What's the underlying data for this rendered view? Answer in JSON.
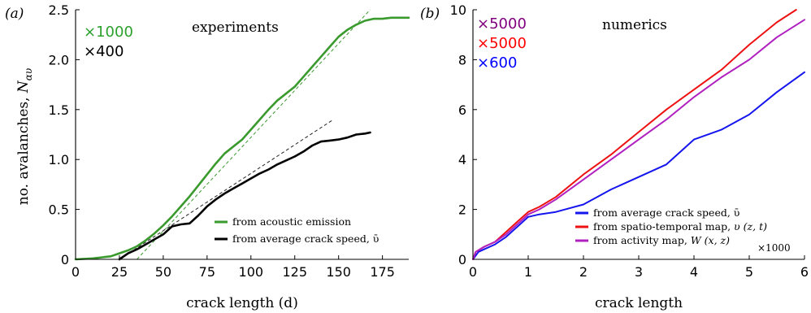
{
  "chart_data": [
    {
      "type": "line",
      "panel_label": "(a)",
      "title": "experiments",
      "xlabel": "crack length (d)",
      "ylabel_text": "no. avalanches, ",
      "ylabel_symbol": "N",
      "ylabel_subscript": "αυ",
      "xlim": [
        0,
        190
      ],
      "ylim": [
        0,
        2.5
      ],
      "xticks": [
        0,
        25,
        50,
        75,
        100,
        125,
        150,
        175
      ],
      "yticks": [
        0,
        0.5,
        1.0,
        1.5,
        2.0,
        2.5
      ],
      "ytick_labels": [
        "0",
        "0.5",
        "1.0",
        "1.5",
        "2.0",
        "2.5"
      ],
      "multipliers": [
        {
          "text": "×1000",
          "color": "#2ca02c"
        },
        {
          "text": "×400",
          "color": "#000000"
        }
      ],
      "series": [
        {
          "name": "from acoustic emission",
          "color": "#3a9a2e",
          "x": [
            0,
            10,
            20,
            25,
            30,
            35,
            40,
            45,
            50,
            55,
            60,
            65,
            70,
            75,
            80,
            85,
            90,
            95,
            100,
            105,
            110,
            115,
            120,
            125,
            130,
            135,
            140,
            145,
            150,
            155,
            160,
            165,
            170,
            175,
            180,
            185,
            190
          ],
          "y": [
            0,
            0.01,
            0.03,
            0.06,
            0.09,
            0.13,
            0.19,
            0.26,
            0.34,
            0.43,
            0.53,
            0.63,
            0.74,
            0.85,
            0.96,
            1.06,
            1.13,
            1.2,
            1.3,
            1.4,
            1.5,
            1.59,
            1.66,
            1.73,
            1.83,
            1.93,
            2.03,
            2.13,
            2.23,
            2.3,
            2.35,
            2.39,
            2.41,
            2.41,
            2.42,
            2.42,
            2.42
          ]
        },
        {
          "name": "from average crack speed, ῡ",
          "color": "#000000",
          "x": [
            25,
            30,
            35,
            40,
            45,
            50,
            55,
            60,
            65,
            70,
            75,
            80,
            85,
            90,
            95,
            100,
            105,
            110,
            115,
            120,
            125,
            130,
            135,
            140,
            145,
            150,
            155,
            160,
            165,
            168
          ],
          "y": [
            0,
            0.06,
            0.1,
            0.15,
            0.2,
            0.25,
            0.33,
            0.35,
            0.36,
            0.44,
            0.53,
            0.6,
            0.66,
            0.71,
            0.76,
            0.81,
            0.86,
            0.9,
            0.95,
            0.99,
            1.03,
            1.08,
            1.14,
            1.18,
            1.19,
            1.2,
            1.22,
            1.25,
            1.26,
            1.27
          ]
        }
      ],
      "fit_lines": [
        {
          "x": [
            35,
            168
          ],
          "y": [
            0,
            2.5
          ]
        },
        {
          "x": [
            25,
            147
          ],
          "y": [
            0,
            1.4
          ]
        }
      ]
    },
    {
      "type": "line",
      "panel_label": "(b)",
      "title": "numerics",
      "xlabel": "crack length",
      "xlim": [
        0,
        6
      ],
      "ylim": [
        0,
        10
      ],
      "xticks": [
        0,
        1,
        2,
        3,
        4,
        5,
        6
      ],
      "yticks": [
        0,
        2,
        4,
        6,
        8,
        10
      ],
      "ytick_labels": [
        "0",
        "2",
        "4",
        "6",
        "8",
        "10"
      ],
      "corner_note": "×1000",
      "multipliers": [
        {
          "text": "×5000",
          "color": "#800080"
        },
        {
          "text": "×5000",
          "color": "#ff0000"
        },
        {
          "text": "×600",
          "color": "#0000ff"
        }
      ],
      "series": [
        {
          "name": "from average crack speed, ῡ",
          "color": "#1515ee",
          "x": [
            0,
            0.1,
            0.2,
            0.4,
            0.6,
            0.8,
            1.0,
            1.2,
            1.5,
            2.0,
            2.5,
            3.0,
            3.5,
            4.0,
            4.5,
            5.0,
            5.5,
            6.0
          ],
          "y": [
            0,
            0.3,
            0.4,
            0.6,
            0.9,
            1.3,
            1.7,
            1.8,
            1.9,
            2.2,
            2.8,
            3.3,
            3.8,
            4.8,
            5.2,
            5.8,
            6.7,
            7.5
          ]
        },
        {
          "name": "from spatio-temporal map, ",
          "name_symbol": "υ",
          "name_args": "(z, t)",
          "color": "#ee1111",
          "x": [
            0,
            0.05,
            0.2,
            0.4,
            0.6,
            0.8,
            1.0,
            1.2,
            1.5,
            2.0,
            2.5,
            3.0,
            3.5,
            4.0,
            4.5,
            5.0,
            5.5,
            5.85
          ],
          "y": [
            0,
            0.3,
            0.5,
            0.7,
            1.1,
            1.5,
            1.9,
            2.1,
            2.5,
            3.4,
            4.2,
            5.1,
            6.0,
            6.8,
            7.6,
            8.6,
            9.5,
            10.0
          ]
        },
        {
          "name": "from activity map, ",
          "name_symbol": "W",
          "name_args": "(x, z)",
          "color": "#b020c0",
          "x": [
            0,
            0.05,
            0.2,
            0.4,
            0.6,
            0.8,
            1.0,
            1.2,
            1.5,
            2.0,
            2.5,
            3.0,
            3.5,
            4.0,
            4.5,
            5.0,
            5.5,
            6.0
          ],
          "y": [
            0,
            0.3,
            0.5,
            0.7,
            1.0,
            1.4,
            1.8,
            2.0,
            2.4,
            3.2,
            4.0,
            4.8,
            5.6,
            6.5,
            7.3,
            8.0,
            8.9,
            9.6
          ]
        }
      ]
    }
  ]
}
